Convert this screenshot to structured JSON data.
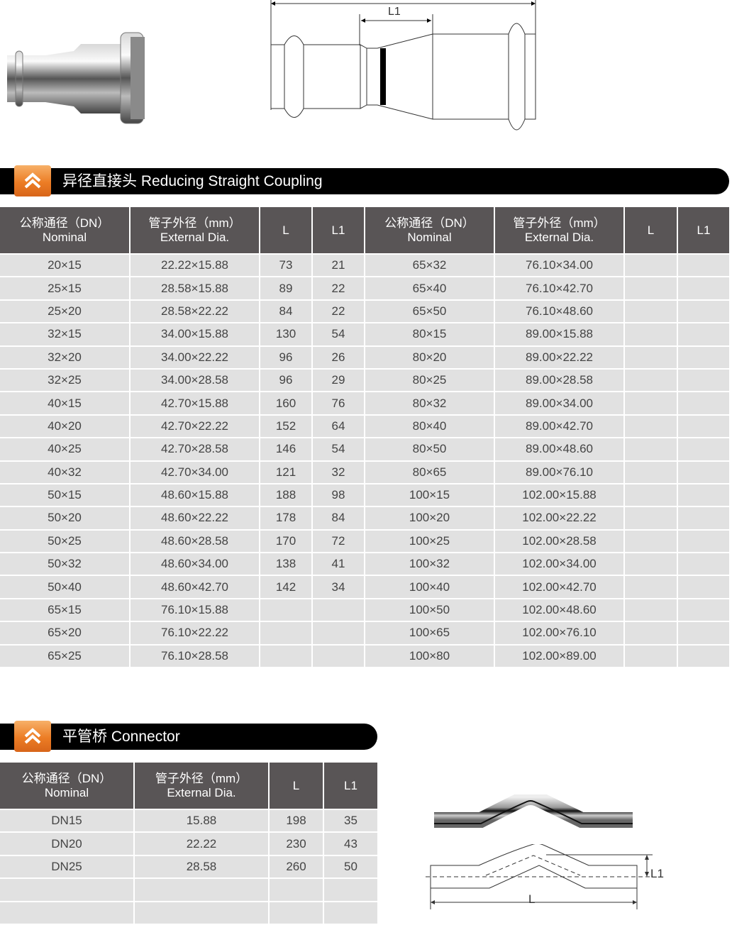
{
  "top_diagram": {
    "dim_label": "L1"
  },
  "section1": {
    "title": "异径直接头 Reducing Straight Coupling",
    "headers": [
      {
        "cn": "公称通径（DN）",
        "en": "Nominal"
      },
      {
        "cn": "管子外径（mm）",
        "en": "External Dia."
      },
      {
        "cn": "L"
      },
      {
        "cn": "L1"
      },
      {
        "cn": "公称通径（DN）",
        "en": "Nominal"
      },
      {
        "cn": "管子外径（mm）",
        "en": "External Dia."
      },
      {
        "cn": "L"
      },
      {
        "cn": "L1"
      }
    ],
    "rows": [
      [
        "20×15",
        "22.22×15.88",
        "73",
        "21",
        "65×32",
        "76.10×34.00",
        "",
        ""
      ],
      [
        "25×15",
        "28.58×15.88",
        "89",
        "22",
        "65×40",
        "76.10×42.70",
        "",
        ""
      ],
      [
        "25×20",
        "28.58×22.22",
        "84",
        "22",
        "65×50",
        "76.10×48.60",
        "",
        ""
      ],
      [
        "32×15",
        "34.00×15.88",
        "130",
        "54",
        "80×15",
        "89.00×15.88",
        "",
        ""
      ],
      [
        "32×20",
        "34.00×22.22",
        "96",
        "26",
        "80×20",
        "89.00×22.22",
        "",
        ""
      ],
      [
        "32×25",
        "34.00×28.58",
        "96",
        "29",
        "80×25",
        "89.00×28.58",
        "",
        ""
      ],
      [
        "40×15",
        "42.70×15.88",
        "160",
        "76",
        "80×32",
        "89.00×34.00",
        "",
        ""
      ],
      [
        "40×20",
        "42.70×22.22",
        "152",
        "64",
        "80×40",
        "89.00×42.70",
        "",
        ""
      ],
      [
        "40×25",
        "42.70×28.58",
        "146",
        "54",
        "80×50",
        "89.00×48.60",
        "",
        ""
      ],
      [
        "40×32",
        "42.70×34.00",
        "121",
        "32",
        "80×65",
        "89.00×76.10",
        "",
        ""
      ],
      [
        "50×15",
        "48.60×15.88",
        "188",
        "98",
        "100×15",
        "102.00×15.88",
        "",
        ""
      ],
      [
        "50×20",
        "48.60×22.22",
        "178",
        "84",
        "100×20",
        "102.00×22.22",
        "",
        ""
      ],
      [
        "50×25",
        "48.60×28.58",
        "170",
        "72",
        "100×25",
        "102.00×28.58",
        "",
        ""
      ],
      [
        "50×32",
        "48.60×34.00",
        "138",
        "41",
        "100×32",
        "102.00×34.00",
        "",
        ""
      ],
      [
        "50×40",
        "48.60×42.70",
        "142",
        "34",
        "100×40",
        "102.00×42.70",
        "",
        ""
      ],
      [
        "65×15",
        "76.10×15.88",
        "",
        "",
        "100×50",
        "102.00×48.60",
        "",
        ""
      ],
      [
        "65×20",
        "76.10×22.22",
        "",
        "",
        "100×65",
        "102.00×76.10",
        "",
        ""
      ],
      [
        "65×25",
        "76.10×28.58",
        "",
        "",
        "100×80",
        "102.00×89.00",
        "",
        ""
      ]
    ]
  },
  "section2": {
    "title": "平管桥 Connector",
    "headers": [
      {
        "cn": "公称通径（DN）",
        "en": "Nominal"
      },
      {
        "cn": "管子外径（mm）",
        "en": "External Dia."
      },
      {
        "cn": "L"
      },
      {
        "cn": "L1"
      }
    ],
    "rows": [
      [
        "DN15",
        "15.88",
        "198",
        "35"
      ],
      [
        "DN20",
        "22.22",
        "230",
        "43"
      ],
      [
        "DN25",
        "28.58",
        "260",
        "50"
      ],
      [
        "",
        "",
        "",
        ""
      ],
      [
        "",
        "",
        "",
        ""
      ]
    ]
  },
  "bottom_diagram": {
    "dim_L": "L",
    "dim_L1": "L1"
  },
  "colors": {
    "header_bg": "#595556",
    "row_bg": "#e1e1e1",
    "badge_orange": "#ec7d25",
    "bar_black": "#000000"
  }
}
